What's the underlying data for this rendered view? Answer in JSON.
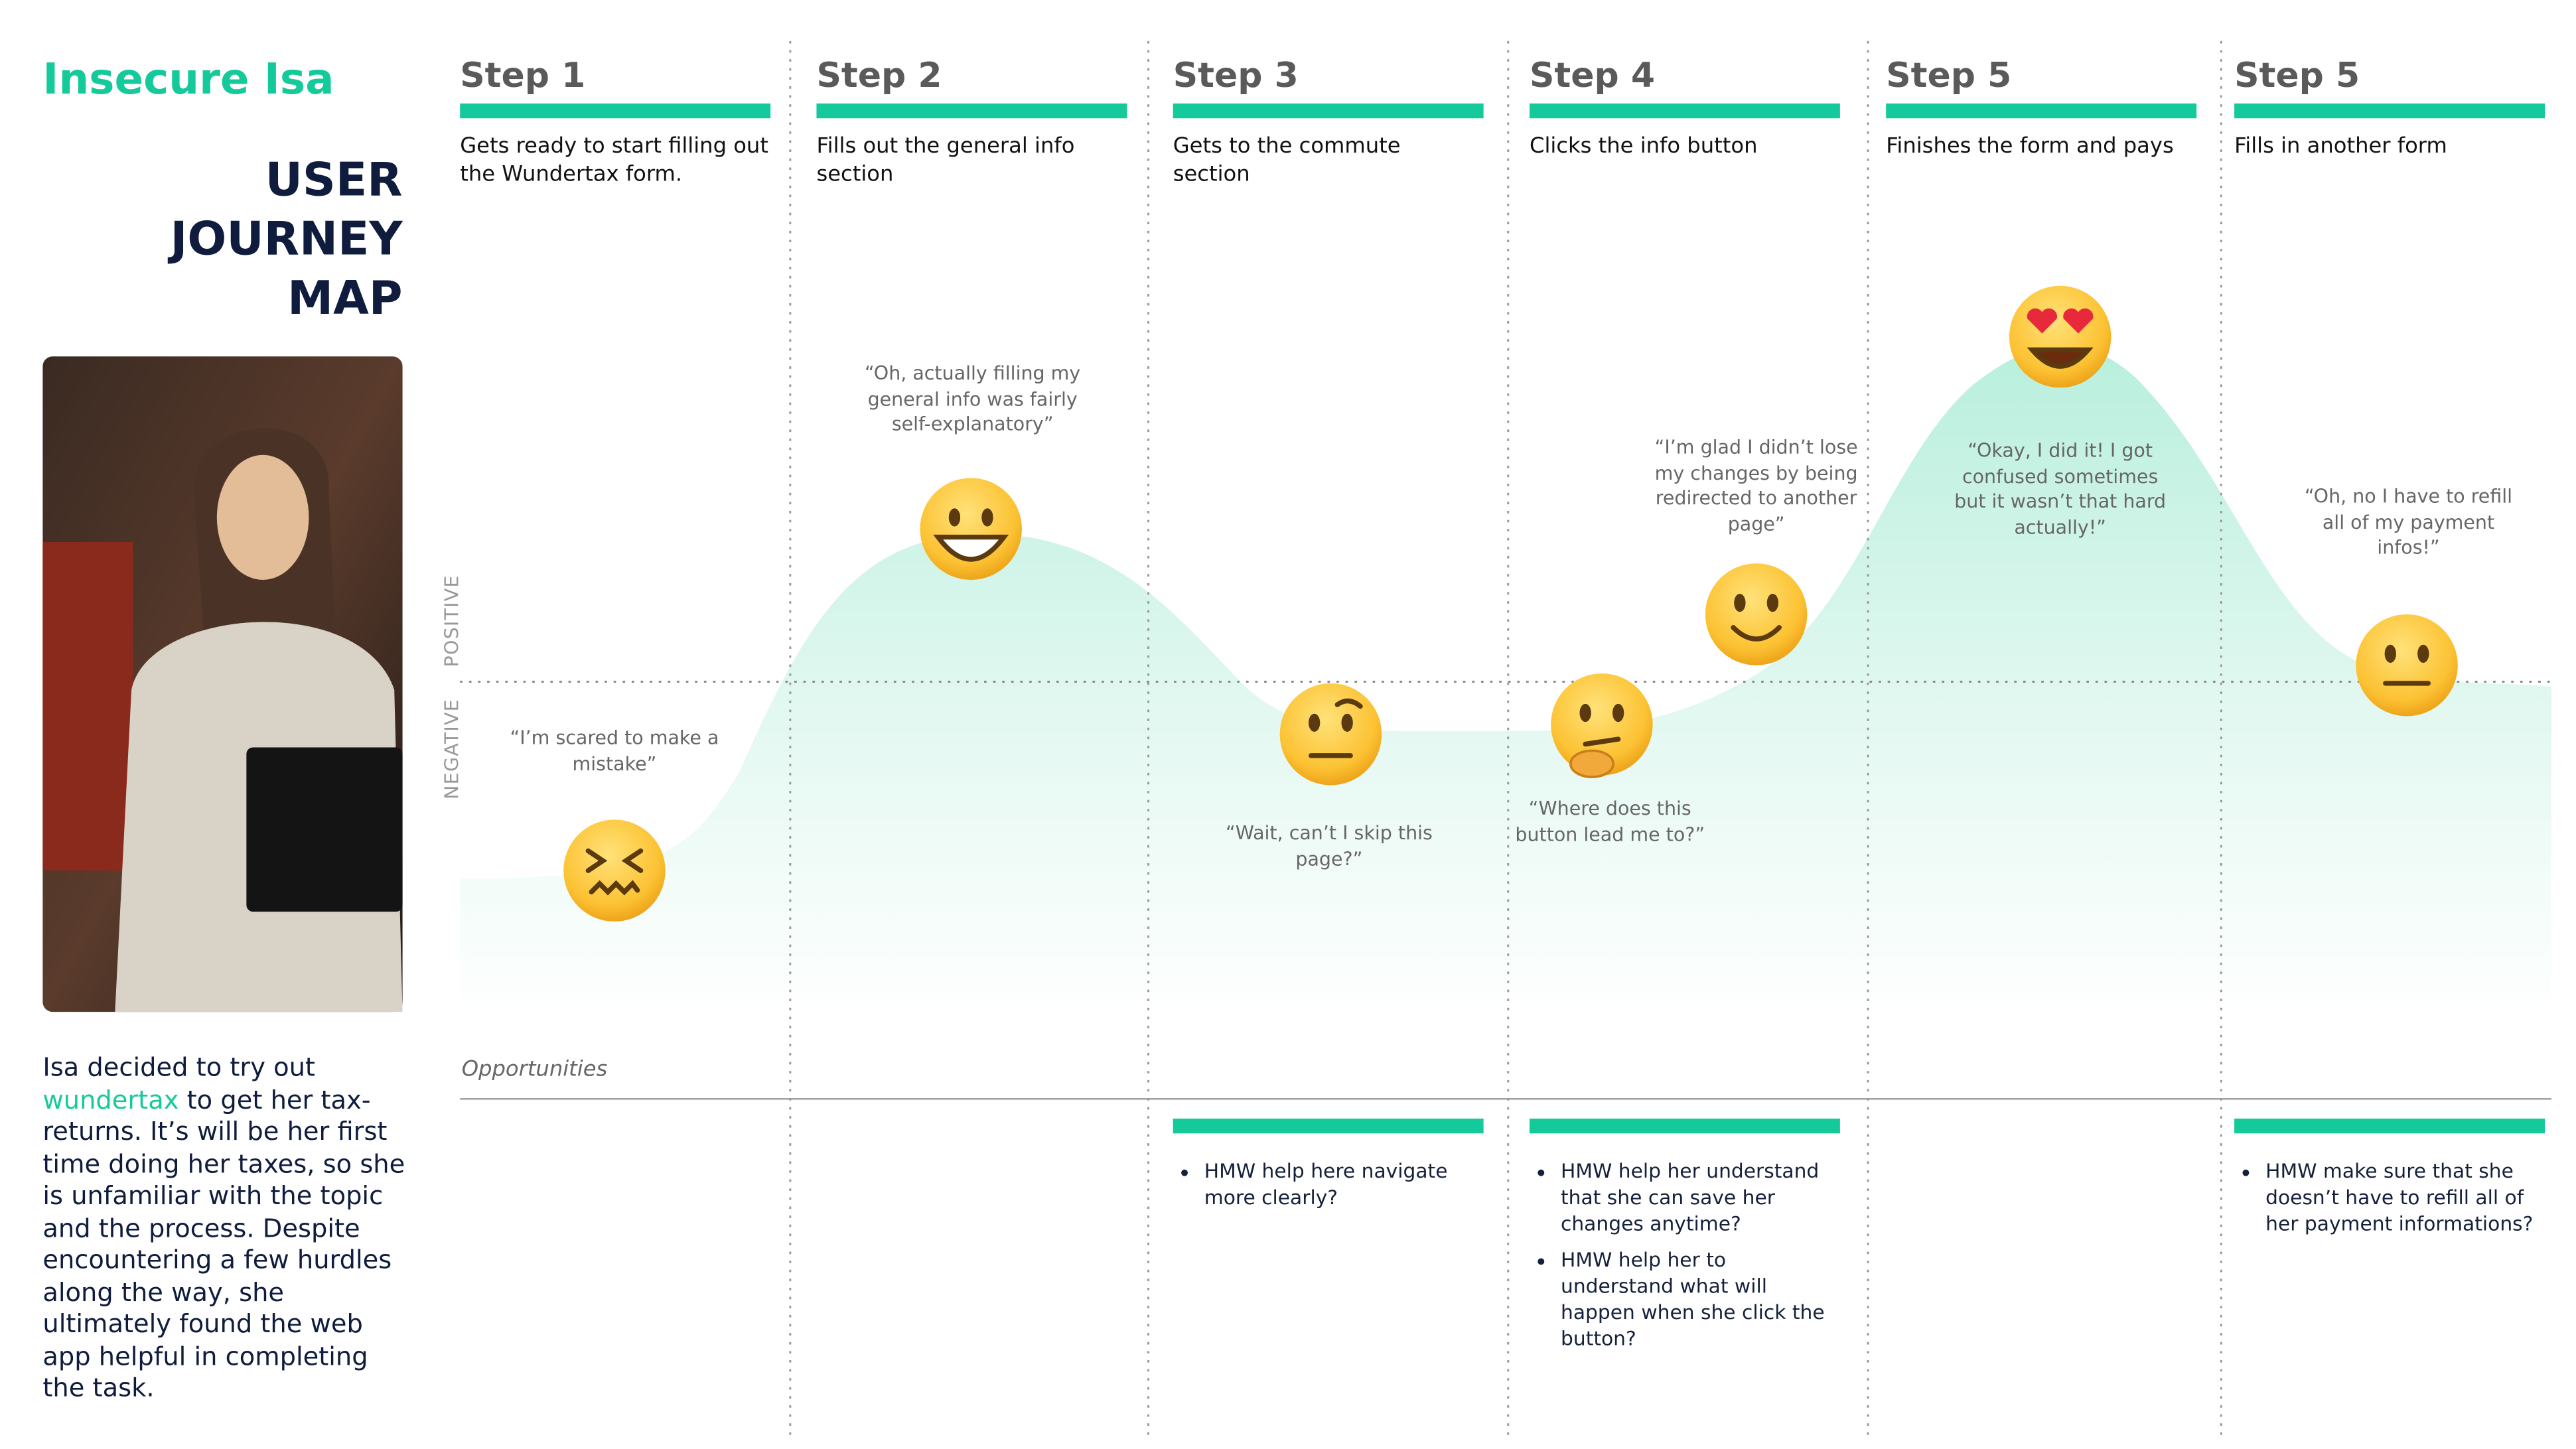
{
  "persona": {
    "name": "Insecure Isa",
    "title": "USER JOURNEY MAP",
    "description": [
      "Isa decided to try out ",
      "wundertax",
      " to get her tax-returns. It’s will be her first time doing her taxes, so she is unfamiliar with the topic and the process. Despite encountering a few hurdles along the way, she ultimately found the web app helpful in completing the task."
    ]
  },
  "axis": {
    "positive": "POSITIVE",
    "negative": "NEGATIVE"
  },
  "opportunities_label": "Opportunities",
  "steps": [
    {
      "title": "Step 1",
      "description": "Gets ready to start filling out the Wundertax form.",
      "opportunities": []
    },
    {
      "title": "Step 2",
      "description": "Fills out the general info section",
      "opportunities": []
    },
    {
      "title": "Step 3",
      "description": "Gets to the commute section",
      "opportunities": [
        "HMW help here navigate more clearly?"
      ]
    },
    {
      "title": "Step 4",
      "description": "Clicks the info button",
      "opportunities": [
        "HMW help her understand that she can save her changes anytime?",
        "HMW help her to understand what will happen when she click the button?"
      ]
    },
    {
      "title": "Step 5",
      "description": "Finishes the form and pays",
      "opportunities": []
    },
    {
      "title": "Step 5",
      "description": "Fills in another form",
      "opportunities": [
        "HMW make sure that she doesn’t have to refill all of her payment informations?"
      ]
    }
  ],
  "moments": [
    {
      "quote": "“I’m scared to make a mistake”"
    },
    {
      "quote": "“Oh, actually filling my general info was fairly self-explanatory”"
    },
    {
      "quote": "“Wait, can’t I skip this page?”"
    },
    {
      "quote": "“Where does this button lead me to?”"
    },
    {
      "quote": "“I’m glad I didn’t lose my changes by being redirected to another page”"
    },
    {
      "quote": "“Okay, I did it! I got confused sometimes but it wasn’t that hard actually!”"
    },
    {
      "quote": "“Oh, no I have to refill all of my payment infos!”"
    }
  ]
}
